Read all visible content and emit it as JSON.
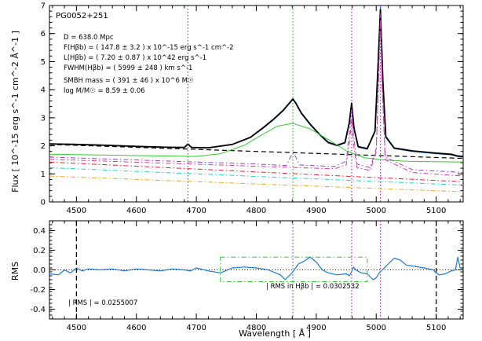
{
  "chart_data": [
    {
      "type": "line",
      "object_name": "PG0052+251",
      "ylabel": "Flux [ 10^-15 erg s^-1 cm^-2 Å^-1 ]",
      "xlim": [
        4455,
        5145
      ],
      "ylim": [
        0,
        7
      ],
      "x_ticks": [
        "4500",
        "4600",
        "4700",
        "4800",
        "4900",
        "5000",
        "5100"
      ],
      "y_ticks": [
        "0",
        "1",
        "2",
        "3",
        "4",
        "5",
        "6",
        "7"
      ],
      "info_lines": [
        "D = 638.0 Mpc",
        "F(Hβb) = ( 147.8 ± 3.2 ) x 10^-15 erg s^-1 cm^-2",
        "L(Hβb) = ( 7.20 ± 0.87 ) x 10^42 erg s^-1",
        "FWHM(Hβb) = ( 5999 ± 248 ) km s^-1",
        "SMBH mass = ( 391 ± 46 ) x 10^6 M☉",
        "log M/M☉ = 8.59 ± 0.06"
      ],
      "vertical_lines": [
        {
          "x": 4686,
          "color": "#e8202a",
          "style": "dotted"
        },
        {
          "x": 4861,
          "color": "#22bb22",
          "style": "dotted"
        },
        {
          "x": 4959,
          "color": "#b030b0",
          "style": "dotted"
        },
        {
          "x": 5007,
          "color": "#b030b0",
          "style": "dotted"
        }
      ],
      "series": [
        {
          "name": "",
          "role": "observed",
          "color": "#1f77d4",
          "style": "solid",
          "x": [
            4455,
            4500,
            4550,
            4600,
            4650,
            4680,
            4686,
            4692,
            4720,
            4760,
            4790,
            4810,
            4830,
            4845,
            4855,
            4861,
            4866,
            4875,
            4890,
            4905,
            4920,
            4935,
            4948,
            4955,
            4959,
            4963,
            4970,
            4985,
            4998,
            5003,
            5007,
            5011,
            5016,
            5030,
            5060,
            5100,
            5125,
            5135,
            5145
          ],
          "y": [
            2.07,
            2.05,
            2.02,
            1.98,
            1.95,
            1.94,
            2.05,
            1.94,
            1.93,
            2.05,
            2.3,
            2.6,
            2.95,
            3.25,
            3.5,
            3.65,
            3.5,
            3.15,
            2.75,
            2.4,
            2.1,
            2.0,
            2.1,
            2.8,
            3.5,
            2.6,
            1.95,
            1.88,
            2.5,
            4.8,
            6.95,
            4.3,
            2.3,
            1.9,
            1.8,
            1.72,
            1.68,
            1.62,
            1.6
          ]
        },
        {
          "name": "",
          "role": "model-fit",
          "color": "#000000",
          "style": "solid",
          "x": [
            4455,
            4500,
            4550,
            4600,
            4650,
            4680,
            4686,
            4692,
            4720,
            4760,
            4790,
            4810,
            4830,
            4845,
            4855,
            4861,
            4866,
            4875,
            4890,
            4905,
            4920,
            4935,
            4948,
            4955,
            4959,
            4963,
            4970,
            4985,
            4998,
            5003,
            5007,
            5011,
            5016,
            5030,
            5060,
            5100,
            5125,
            5135,
            5145
          ],
          "y": [
            2.07,
            2.05,
            2.02,
            1.98,
            1.95,
            1.94,
            2.06,
            1.94,
            1.93,
            2.05,
            2.3,
            2.62,
            2.97,
            3.27,
            3.52,
            3.67,
            3.52,
            3.17,
            2.77,
            2.42,
            2.12,
            2.02,
            2.12,
            2.82,
            3.52,
            2.62,
            1.97,
            1.9,
            2.52,
            4.82,
            6.85,
            4.32,
            2.32,
            1.92,
            1.82,
            1.74,
            1.7,
            1.64,
            1.62
          ]
        },
        {
          "name": "",
          "role": "continuum",
          "color": "#000000",
          "style": "dashed",
          "x": [
            4455,
            5145
          ],
          "y": [
            2.05,
            1.55
          ]
        },
        {
          "name": "",
          "role": "broad-hbeta",
          "color": "#33cc33",
          "style": "solid",
          "x": [
            4455,
            4700,
            4740,
            4780,
            4810,
            4835,
            4861,
            4890,
            4920,
            4950,
            4980,
            5010,
            5050,
            5145
          ],
          "y": [
            1.7,
            1.62,
            1.72,
            2.02,
            2.4,
            2.7,
            2.8,
            2.6,
            2.22,
            1.82,
            1.58,
            1.5,
            1.45,
            1.42
          ]
        },
        {
          "name": "",
          "role": "component-purple",
          "color": "#9a3ec9",
          "style": "dashdot",
          "x": [
            4455,
            4800,
            4850,
            4857,
            4861,
            4866,
            4872,
            4930,
            4950,
            4956,
            4959,
            4962,
            4968,
            4990,
            5000,
            5004,
            5007,
            5010,
            5015,
            5060,
            5145
          ],
          "y": [
            1.6,
            1.35,
            1.3,
            1.6,
            1.75,
            1.6,
            1.32,
            1.26,
            1.45,
            2.6,
            3.4,
            2.4,
            1.35,
            1.22,
            1.9,
            4.5,
            6.7,
            4.2,
            1.6,
            1.15,
            1.05
          ]
        },
        {
          "name": "",
          "role": "component-magenta",
          "color": "#d63a9a",
          "style": "dashdot",
          "x": [
            4455,
            4930,
            4950,
            4956,
            4959,
            4962,
            4968,
            4990,
            5000,
            5004,
            5007,
            5010,
            5015,
            5060,
            5145
          ],
          "y": [
            1.52,
            1.18,
            1.32,
            2.2,
            3.0,
            2.1,
            1.22,
            1.12,
            1.8,
            4.3,
            6.5,
            4.0,
            1.5,
            1.05,
            0.92
          ]
        },
        {
          "name": "",
          "role": "component-red",
          "color": "#e8202a",
          "style": "dashdot",
          "x": [
            4455,
            5145
          ],
          "y": [
            1.42,
            0.72
          ]
        },
        {
          "name": "",
          "role": "component-cyan",
          "color": "#22d3c8",
          "style": "dashdot",
          "x": [
            4455,
            5145
          ],
          "y": [
            1.22,
            0.6
          ]
        },
        {
          "name": "",
          "role": "component-orange",
          "color": "#f0a820",
          "style": "dashdot",
          "x": [
            4455,
            5145
          ],
          "y": [
            0.92,
            0.36
          ]
        }
      ]
    },
    {
      "type": "line",
      "xlabel": "Wavelength [ Å ]",
      "ylabel": "RMS",
      "xlim": [
        4455,
        5145
      ],
      "ylim": [
        -0.5,
        0.5
      ],
      "x_ticks": [
        "4500",
        "4600",
        "4700",
        "4800",
        "4900",
        "5000",
        "5100"
      ],
      "y_ticks": [
        "-0.4",
        "-0.2",
        "0.0",
        "0.2",
        "0.4"
      ],
      "rms_total_label": "| RMS | = 0.0255007",
      "rms_hbeta_label": "| RMS in Hβb | = 0.0302532",
      "hbeta_window": [
        4740,
        4985
      ],
      "hbeta_window_y": [
        -0.12,
        0.13
      ],
      "vertical_lines": [
        {
          "x": 4500,
          "color": "#000000",
          "style": "dashed"
        },
        {
          "x": 5100,
          "color": "#000000",
          "style": "dashed"
        },
        {
          "x": 4861,
          "color": "#5a5ae0",
          "style": "dotted"
        },
        {
          "x": 4959,
          "color": "#b030b0",
          "style": "dotted"
        },
        {
          "x": 5007,
          "color": "#b030b0",
          "style": "dotted"
        }
      ],
      "series": [
        {
          "name": "",
          "role": "residual",
          "color": "#1f77d4",
          "style": "solid",
          "x": [
            4455,
            4470,
            4480,
            4490,
            4500,
            4510,
            4520,
            4540,
            4560,
            4580,
            4600,
            4620,
            4640,
            4660,
            4680,
            4690,
            4700,
            4720,
            4740,
            4760,
            4780,
            4800,
            4820,
            4840,
            4848,
            4855,
            4861,
            4870,
            4880,
            4890,
            4900,
            4910,
            4920,
            4935,
            4950,
            4955,
            4958,
            4962,
            4966,
            4975,
            4985,
            4995,
            5000,
            5005,
            5010,
            5015,
            5020,
            5030,
            5040,
            5050,
            5060,
            5080,
            5095,
            5100,
            5105,
            5115,
            5125,
            5132,
            5136,
            5140,
            5145
          ],
          "y": [
            -0.04,
            -0.05,
            0.0,
            -0.03,
            0.02,
            -0.01,
            0.01,
            0.0,
            0.01,
            -0.01,
            0.01,
            0.0,
            -0.01,
            0.01,
            0.0,
            -0.01,
            0.02,
            -0.01,
            -0.03,
            0.02,
            0.03,
            0.02,
            0.0,
            -0.05,
            -0.1,
            -0.06,
            -0.02,
            0.06,
            0.09,
            0.13,
            0.08,
            0.0,
            -0.03,
            -0.05,
            -0.04,
            -0.06,
            -0.03,
            0.03,
            0.0,
            -0.03,
            -0.04,
            -0.1,
            -0.08,
            -0.03,
            0.0,
            0.03,
            0.06,
            0.12,
            0.1,
            0.05,
            0.04,
            0.02,
            0.0,
            -0.03,
            -0.05,
            -0.04,
            -0.01,
            0.0,
            0.13,
            0.02,
            0.01
          ]
        }
      ]
    }
  ]
}
